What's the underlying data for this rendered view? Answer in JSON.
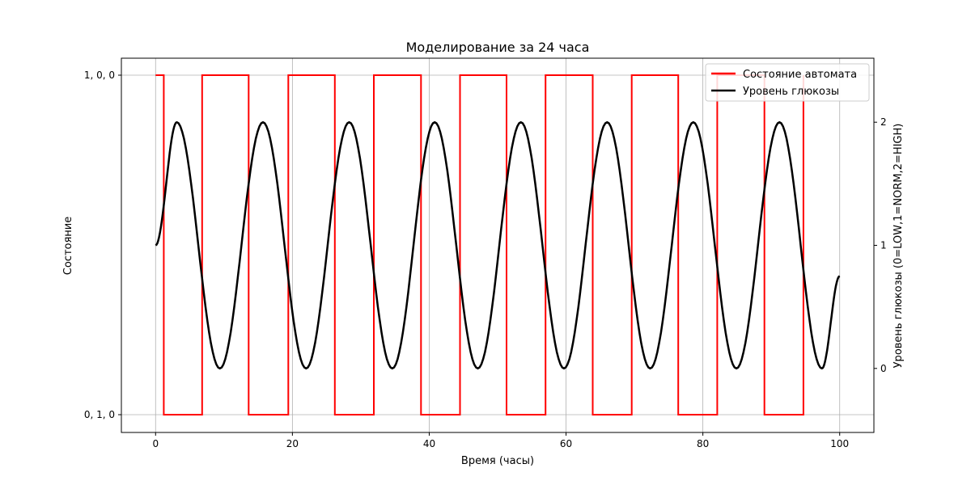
{
  "chart_data": {
    "type": "line",
    "title": "Моделирование за 24 часа",
    "xlabel": "Время (часы)",
    "ylabel_left": "Состояние",
    "ylabel_right": "Уровень глюкозы (0=LOW,1=NORM,2=HIGH)",
    "xlim": [
      -5,
      105
    ],
    "x_ticks": [
      0,
      20,
      40,
      60,
      80,
      100
    ],
    "left_ticks": [
      {
        "value": 0,
        "label": "0, 1, 0"
      },
      {
        "value": 1,
        "label": "1, 0, 0"
      }
    ],
    "right_ylim": [
      -0.52,
      2.52
    ],
    "right_ticks": [
      0,
      1,
      2
    ],
    "grid": true,
    "legend_position": "top-right",
    "series": [
      {
        "name": "Состояние автомата",
        "axis": "left",
        "color": "#ff0000",
        "style": "step",
        "x": [
          0,
          1.2,
          1.2,
          6.8,
          6.8,
          13.6,
          13.6,
          19.4,
          19.4,
          26.2,
          26.2,
          31.9,
          31.9,
          38.8,
          38.8,
          44.5,
          44.5,
          51.3,
          51.3,
          57.0,
          57.0,
          63.9,
          63.9,
          69.6,
          69.6,
          76.4,
          76.4,
          82.1,
          82.1,
          89.0,
          89.0,
          94.7,
          94.7
        ],
        "values": [
          1,
          1,
          0,
          0,
          1,
          1,
          0,
          0,
          1,
          1,
          0,
          0,
          1,
          1,
          0,
          0,
          1,
          1,
          0,
          0,
          1,
          1,
          0,
          0,
          1,
          1,
          0,
          0,
          1,
          1,
          0,
          0,
          1
        ]
      },
      {
        "name": "Уровень глюкозы",
        "axis": "right",
        "color": "#000000",
        "style": "line",
        "x": [
          0,
          3.1,
          9.4,
          15.7,
          22.0,
          28.3,
          34.6,
          40.8,
          47.1,
          53.4,
          59.7,
          66.0,
          72.3,
          78.6,
          84.9,
          91.2,
          97.4,
          100
        ],
        "values": [
          1,
          2,
          0,
          2,
          0,
          2,
          0,
          2,
          0,
          2,
          0,
          2,
          0,
          2,
          0,
          2,
          0,
          0.75
        ]
      }
    ]
  }
}
